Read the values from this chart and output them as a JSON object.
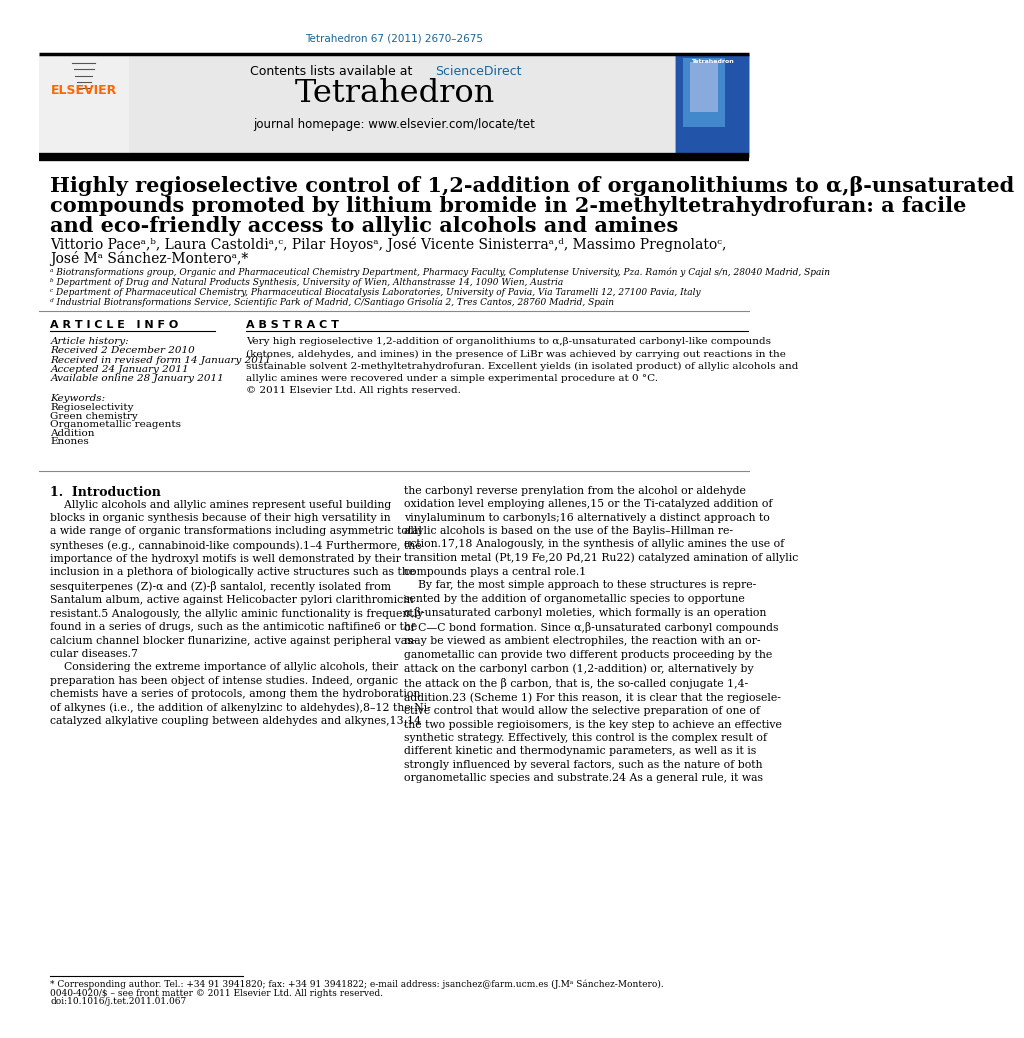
{
  "bg_color": "#ffffff",
  "journal_issue": "Tetrahedron 67 (2011) 2670–2675",
  "elsevier_color": "#FF6600",
  "sciencedirect_color": "#1a6496",
  "header_bg": "#e8e8e8",
  "journal_name": "Tetrahedron",
  "journal_homepage": "journal homepage: www.elsevier.com/locate/tet",
  "title_line1": "Highly regioselective control of 1,2-addition of organolithiums to α,β-unsaturated",
  "title_line2": "compounds promoted by lithium bromide in 2-methyltetrahydrofuran: a facile",
  "title_line3": "and eco-friendly access to allylic alcohols and amines",
  "authors_line1": "Vittorio Paceᵃ,ᵇ, Laura Castoldiᵃ,ᶜ, Pilar Hoyosᵃ, José Vicente Sinisterraᵃ,ᵈ, Massimo Pregnolatoᶜ,",
  "authors_line2": "José Mᵃ Sánchez-Monteroᵃ,*",
  "affil_a": "ᵃ Biotransformations group, Organic and Pharmaceutical Chemistry Department, Pharmacy Faculty, Complutense University, Pza. Ramón y Cajal s/n, 28040 Madrid, Spain",
  "affil_b": "ᵇ Department of Drug and Natural Products Synthesis, University of Wien, Althanstrasse 14, 1090 Wien, Austria",
  "affil_c": "ᶜ Department of Pharmaceutical Chemistry, Pharmaceutical Biocatalysis Laboratories, University of Pavia, Via Taramelli 12, 27100 Pavia, Italy",
  "affil_d": "ᵈ Industrial Biotransformations Service, Scientific Park of Madrid, C/Santiago Grisolía 2, Tres Cantos, 28760 Madrid, Spain",
  "article_info_header": "A R T I C L E   I N F O",
  "abstract_header": "A B S T R A C T",
  "article_history_label": "Article history:",
  "received_1": "Received 2 December 2010",
  "received_revised": "Received in revised form 14 January 2011",
  "accepted": "Accepted 24 January 2011",
  "available": "Available online 28 January 2011",
  "keywords_label": "Keywords:",
  "keyword_1": "Regioselectivity",
  "keyword_2": "Green chemistry",
  "keyword_3": "Organometallic reagents",
  "keyword_4": "Addition",
  "keyword_5": "Enones",
  "abstract_text": "Very high regioselective 1,2-addition of organolithiums to α,β-unsaturated carbonyl-like compounds\n(ketones, aldehydes, and imines) in the presence of LiBr was achieved by carrying out reactions in the\nsustainable solvent 2-methyltetrahydrofuran. Excellent yields (in isolated product) of allylic alcohols and\nallylic amines were recovered under a simple experimental procedure at 0 °C.\n© 2011 Elsevier Ltd. All rights reserved.",
  "section_intro": "1.  Introduction",
  "col1_text": "    Allylic alcohols and allylic amines represent useful building\nblocks in organic synthesis because of their high versatility in\na wide range of organic transformations including asymmetric total\nsyntheses (e.g., cannabinoid-like compounds).1–4 Furthermore, the\nimportance of the hydroxyl motifs is well demonstrated by their\ninclusion in a plethora of biologically active structures such as the\nsesquiterpenes (Z)-α and (Z)-β santalol, recently isolated from\nSantalum album, active against Helicobacter pylori clarithromicin\nresistant.5 Analogously, the allylic aminic functionality is frequently\nfound in a series of drugs, such as the antimicotic naftifine6 or the\ncalcium channel blocker flunarizine, active against peripheral vas-\ncular diseases.7\n    Considering the extreme importance of allylic alcohols, their\npreparation has been object of intense studies. Indeed, organic\nchemists have a series of protocols, among them the hydroboration\nof alkynes (i.e., the addition of alkenylzinc to aldehydes),8–12 the Ni-\ncatalyzed alkylative coupling between aldehydes and alkynes,13,14",
  "col2_text": "the carbonyl reverse prenylation from the alcohol or aldehyde\noxidation level employing allenes,15 or the Ti-catalyzed addition of\nvinylaluminum to carbonyls;16 alternatively a distinct approach to\nallylic alcohols is based on the use of the Baylis–Hillman re-\naction.17,18 Analogously, in the synthesis of allylic amines the use of\ntransition metal (Pt,19 Fe,20 Pd,21 Ru22) catalyzed amination of allylic\ncompounds plays a central role.1\n    By far, the most simple approach to these structures is repre-\nsented by the addition of organometallic species to opportune\nα,β-unsaturated carbonyl moleties, which formally is an operation\nof C—C bond formation. Since α,β-unsaturated carbonyl compounds\nmay be viewed as ambient electrophiles, the reaction with an or-\nganometallic can provide two different products proceeding by the\nattack on the carbonyl carbon (1,2-addition) or, alternatively by\nthe attack on the β carbon, that is, the so-called conjugate 1,4-\naddition.23 (Scheme 1) For this reason, it is clear that the regiosele-\nctive control that would allow the selective preparation of one of\nthe two possible regioisomers, is the key step to achieve an effective\nsynthetic strategy. Effectively, this control is the complex result of\ndifferent kinetic and thermodynamic parameters, as well as it is\nstrongly influenced by several factors, such as the nature of both\norganometallic species and substrate.24 As a general rule, it was",
  "footnote_corresponding": "* Corresponding author. Tel.: +34 91 3941820; fax: +34 91 3941822; e-mail address: jsanchez@farm.ucm.es (J.Mᵃ Sánchez-Montero).",
  "footnote_issn_1": "0040-4020/$ – see front matter © 2011 Elsevier Ltd. All rights reserved.",
  "footnote_issn_2": "doi:10.1016/j.tet.2011.01.067"
}
